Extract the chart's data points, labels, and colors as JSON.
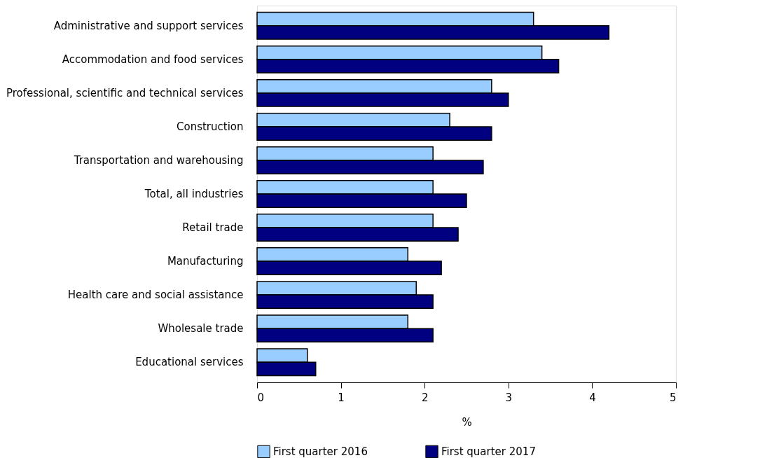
{
  "chart_data": {
    "type": "bar",
    "orientation": "horizontal",
    "xlabel": "%",
    "categories": [
      "Administrative and support services",
      "Accommodation and food services",
      "Professional, scientific and technical services",
      "Construction",
      "Transportation and warehousing",
      "Total, all industries",
      "Retail trade",
      "Manufacturing",
      "Health care and social assistance",
      "Wholesale trade",
      "Educational services"
    ],
    "series": [
      {
        "name": "First quarter 2016",
        "color": "#99ccff",
        "values": [
          3.3,
          3.4,
          2.8,
          2.3,
          2.1,
          2.1,
          2.1,
          1.8,
          1.9,
          1.8,
          0.6
        ]
      },
      {
        "name": "First quarter 2017",
        "color": "#000080",
        "values": [
          4.2,
          3.6,
          3.0,
          2.8,
          2.7,
          2.5,
          2.4,
          2.2,
          2.1,
          2.1,
          0.7
        ]
      }
    ],
    "xlim": [
      0,
      5
    ],
    "xticks": [
      0,
      1,
      2,
      3,
      4,
      5
    ],
    "grid": false,
    "legend": "bottom"
  }
}
